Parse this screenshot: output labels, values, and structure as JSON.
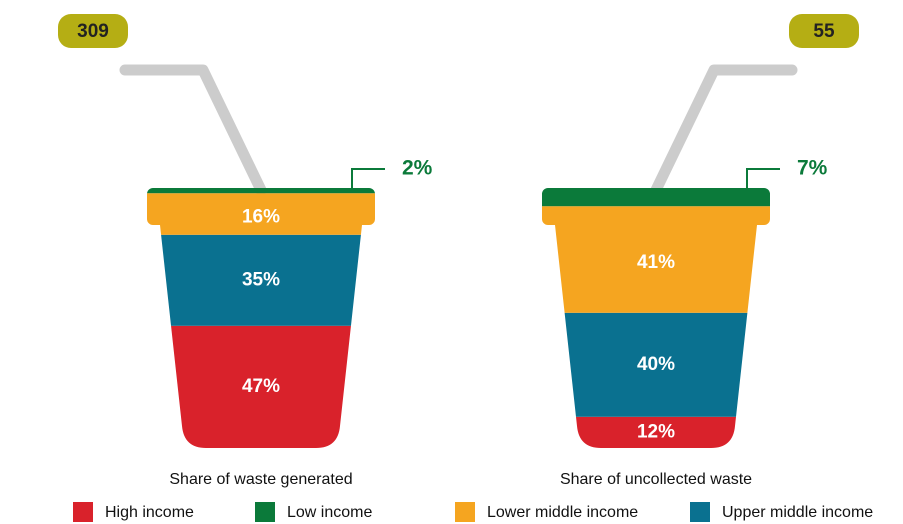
{
  "legend": [
    {
      "name": "High income",
      "color": "#d9222b"
    },
    {
      "name": "Low income",
      "color": "#0b7a3a"
    },
    {
      "name": "Lower middle income",
      "color": "#f5a520"
    },
    {
      "name": "Upper middle income",
      "color": "#0a7190"
    }
  ],
  "chart_data": [
    {
      "type": "cup",
      "title": "Share of waste generated",
      "total": 309,
      "values": [
        47,
        2,
        16,
        35
      ],
      "value_labels": [
        "47%",
        "2%",
        "16%",
        "35%"
      ]
    },
    {
      "type": "cup",
      "title": "Share of uncollected waste",
      "total": 55,
      "values": [
        12,
        7,
        41,
        40
      ],
      "value_labels": [
        "12%",
        "7%",
        "41%",
        "40%"
      ]
    }
  ]
}
